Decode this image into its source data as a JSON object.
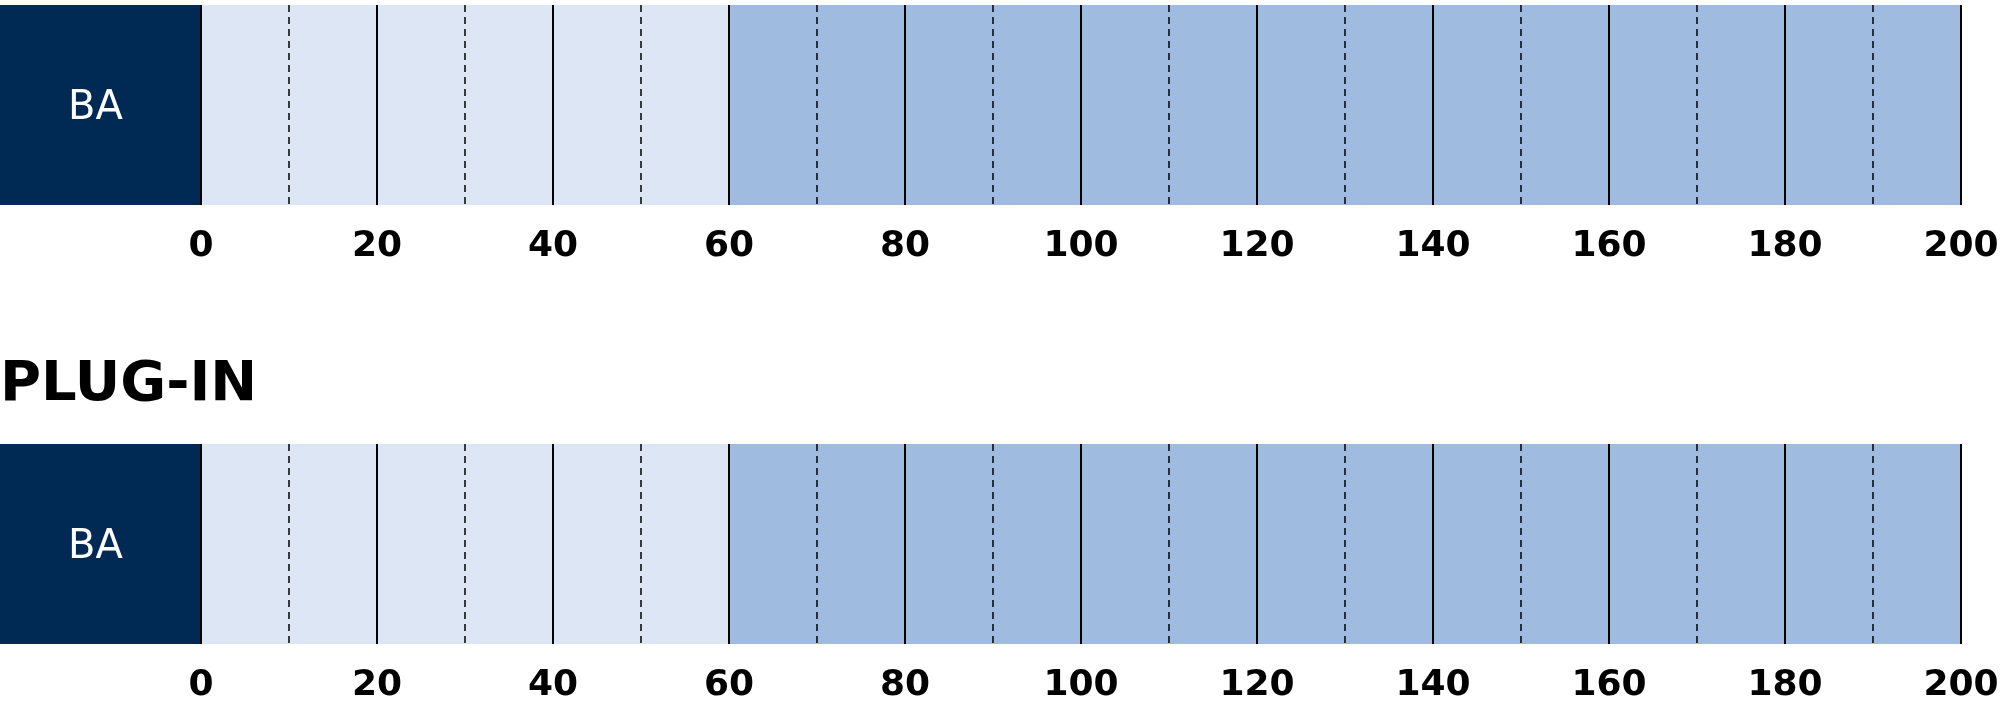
{
  "chart_data": [
    {
      "type": "bar",
      "orientation": "horizontal",
      "stacked": true,
      "categories": [
        "BA"
      ],
      "series": [
        {
          "color": "#dde6f4",
          "values": [
            60
          ]
        },
        {
          "color": "#9fbbe0",
          "values": [
            140
          ]
        }
      ],
      "xlim": [
        0,
        200
      ],
      "xticks": [
        0,
        {
          "value": 10,
          "label": null
        },
        20,
        {
          "value": 30,
          "label": null
        },
        40,
        {
          "value": 50,
          "label": null
        },
        60,
        {
          "value": 70,
          "label": null
        },
        80,
        {
          "value": 90,
          "label": null
        },
        100,
        {
          "value": 110,
          "label": null
        },
        120,
        {
          "value": 130,
          "label": null
        },
        140,
        {
          "value": 150,
          "label": null
        },
        160,
        {
          "value": 170,
          "label": null
        },
        180,
        {
          "value": 190,
          "label": null
        },
        200
      ],
      "grid": "x"
    },
    {
      "type": "bar",
      "title": "PLUG-IN",
      "orientation": "horizontal",
      "stacked": true,
      "categories": [
        "BA"
      ],
      "series": [
        {
          "color": "#dde6f4",
          "values": [
            60
          ]
        },
        {
          "color": "#9fbbe0",
          "values": [
            140
          ]
        }
      ],
      "xlim": [
        0,
        200
      ],
      "xticks": [
        0,
        {
          "value": 10,
          "label": null
        },
        20,
        {
          "value": 30,
          "label": null
        },
        40,
        {
          "value": 50,
          "label": null
        },
        60,
        {
          "value": 70,
          "label": null
        },
        80,
        {
          "value": 90,
          "label": null
        },
        100,
        {
          "value": 110,
          "label": null
        },
        120,
        {
          "value": 130,
          "label": null
        },
        140,
        {
          "value": 150,
          "label": null
        },
        160,
        {
          "value": 170,
          "label": null
        },
        180,
        {
          "value": 190,
          "label": null
        },
        200
      ],
      "grid": "x"
    }
  ]
}
